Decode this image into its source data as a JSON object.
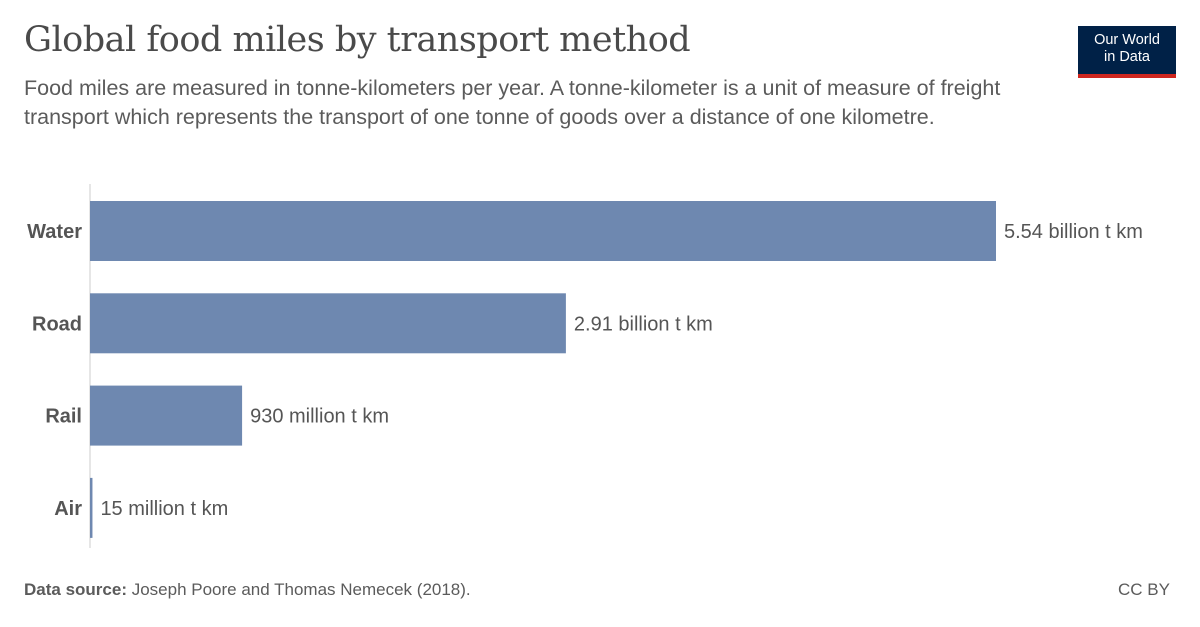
{
  "title": "Global food miles by transport method",
  "subtitle": "Food miles are measured in tonne-kilometers per year. A tonne-kilometer is a unit of measure of freight transport which represents the transport of one tonne of goods over a distance of one kilometre.",
  "logo": {
    "line1": "Our World",
    "line2": "in Data"
  },
  "footer": {
    "source_label": "Data source:",
    "source_text": "Joseph Poore and Thomas Nemecek (2018).",
    "license": "CC BY"
  },
  "colors": {
    "bar": "#6e88b0",
    "logo_bg": "#002147",
    "logo_accent": "#ce261e",
    "axis": "#cccccc"
  },
  "chart_data": {
    "type": "bar",
    "orientation": "horizontal",
    "categories": [
      "Water",
      "Road",
      "Rail",
      "Air"
    ],
    "values": [
      5540000000,
      2910000000,
      930000000,
      15000000
    ],
    "value_labels": [
      "5.54 billion t km",
      "2.91 billion t km",
      "930 million t km",
      "15 million t km"
    ],
    "unit": "t km",
    "xlim": [
      0,
      5540000000
    ],
    "grid": false,
    "legend": "none"
  }
}
